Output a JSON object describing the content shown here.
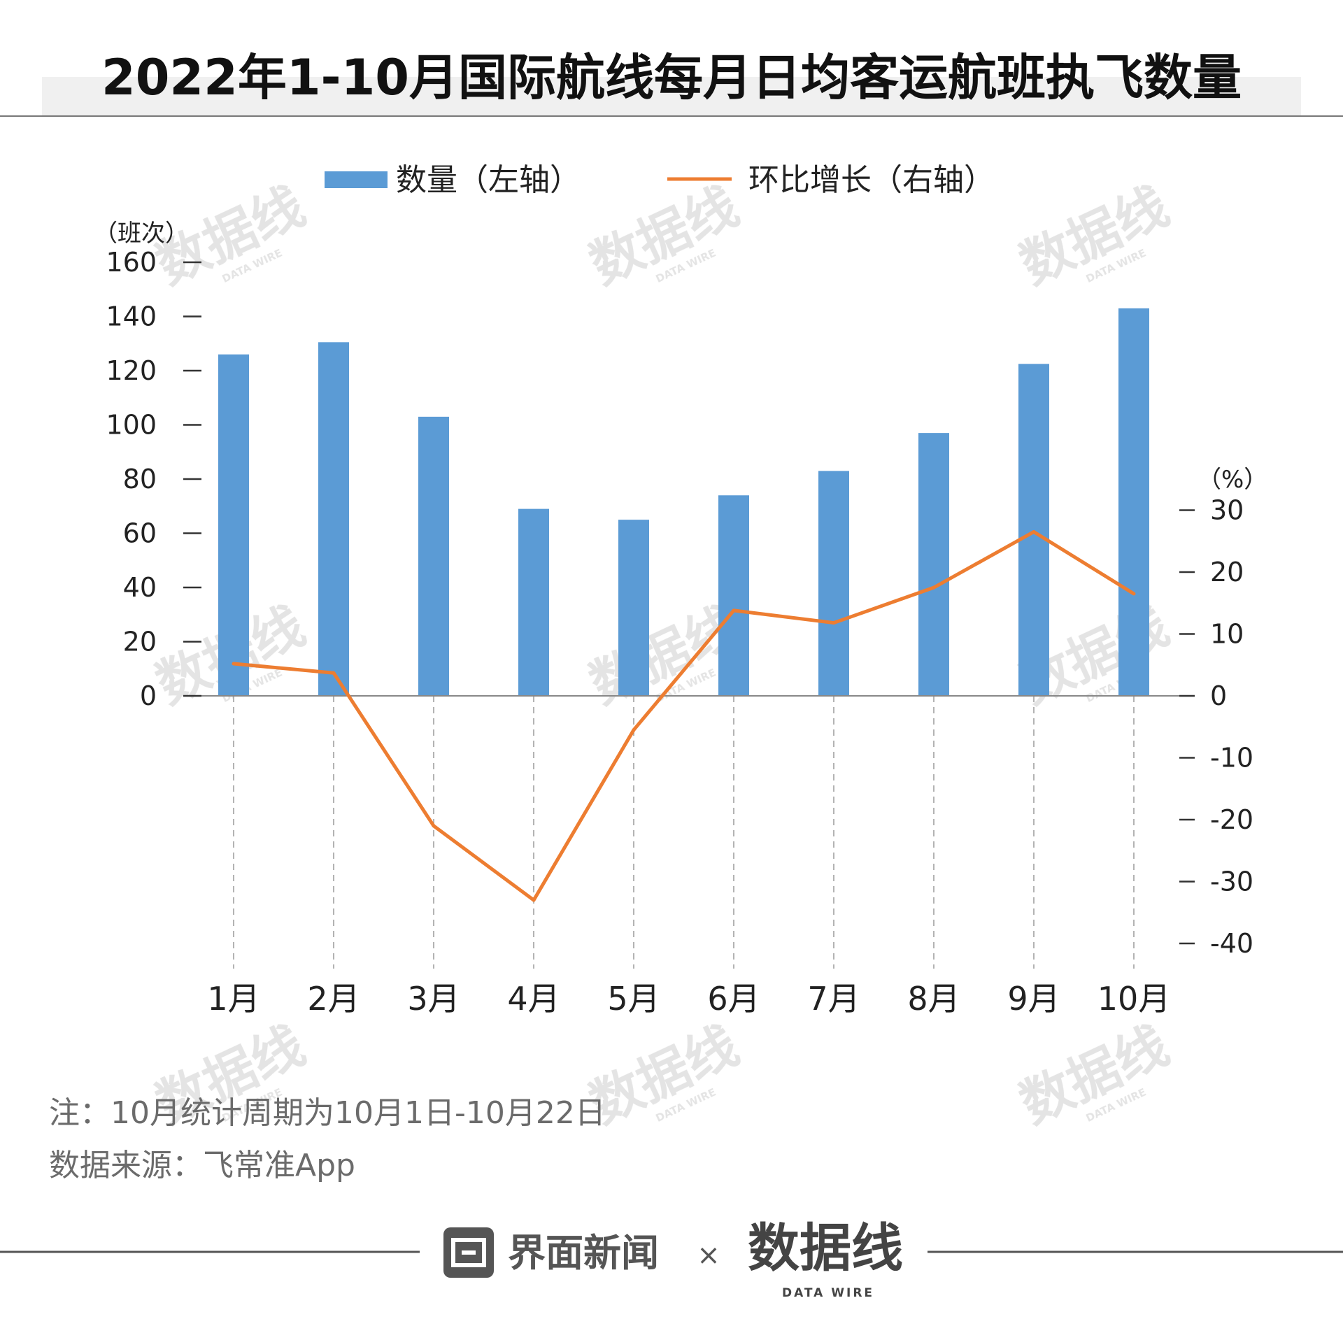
{
  "page": {
    "title": "2022年1-10月国际航线每月日均客运航班执飞数量",
    "note": "注：10月统计周期为10月1日-10月22日",
    "source": "数据来源：飞常准App",
    "watermark": "数据线",
    "watermark_sub": "DATA WIRE",
    "brand_left": "界面新闻",
    "brand_times": "×",
    "brand_right": "数据线",
    "brand_right_sub": "DATA WIRE"
  },
  "colors": {
    "bar": "#5b9bd5",
    "line": "#ed7d31",
    "text": "#222222",
    "muted": "#6b6b6b",
    "rule": "#888888",
    "title_band": "#f0f0f0",
    "brand_gray": "#555555"
  },
  "chart_data": {
    "type": "bar+line",
    "categories": [
      "1月",
      "2月",
      "3月",
      "4月",
      "5月",
      "6月",
      "7月",
      "8月",
      "9月",
      "10月"
    ],
    "series": [
      {
        "name": "数量（左轴）",
        "type": "bar",
        "axis": "left",
        "values": [
          126,
          130.5,
          103,
          69,
          65,
          74,
          83,
          97,
          122.5,
          143
        ]
      },
      {
        "name": "环比增长（右轴）",
        "type": "line",
        "axis": "right",
        "values": [
          5.2,
          3.7,
          -21,
          -33,
          -5.5,
          13.8,
          11.8,
          17.5,
          26.5,
          16.5
        ]
      }
    ],
    "left_axis": {
      "unit_label": "（班次）",
      "range": [
        0,
        160
      ],
      "ticks": [
        "160",
        "140",
        "120",
        "100",
        "80",
        "60",
        "40",
        "20",
        "0"
      ]
    },
    "right_axis": {
      "unit_label": "（%）",
      "range": [
        -40,
        30
      ],
      "ticks": [
        "30",
        "20",
        "10",
        "0",
        "-10",
        "-20",
        "-30",
        "-40"
      ]
    },
    "legend": [
      "数量（左轴）",
      "环比增长（右轴）"
    ],
    "legend_position": "top-center"
  }
}
